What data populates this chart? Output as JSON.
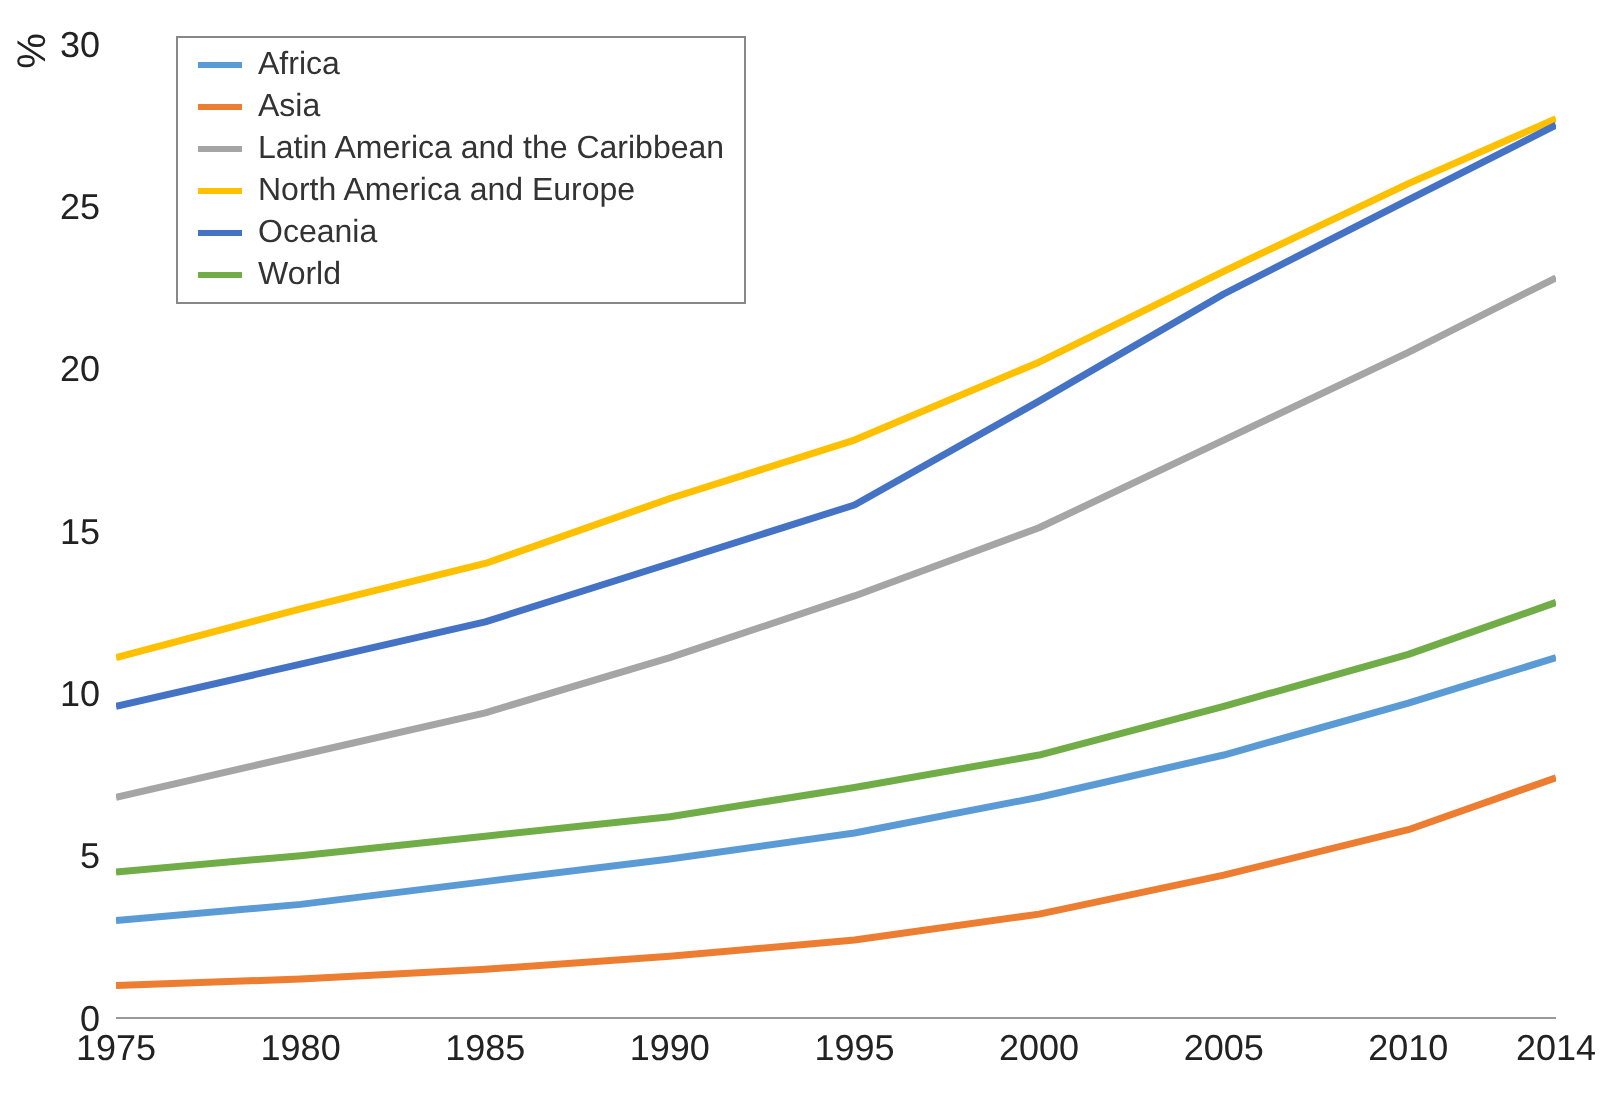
{
  "chart_data": {
    "type": "line",
    "ylabel": "%",
    "x": [
      1975,
      1980,
      1985,
      1990,
      1995,
      2000,
      2005,
      2010,
      2014
    ],
    "series": [
      {
        "name": "Africa",
        "color": "#5b9bd5",
        "values": [
          3.0,
          3.5,
          4.2,
          4.9,
          5.7,
          6.8,
          8.1,
          9.7,
          11.1
        ]
      },
      {
        "name": "Asia",
        "color": "#ed7d31",
        "values": [
          1.0,
          1.2,
          1.5,
          1.9,
          2.4,
          3.2,
          4.4,
          5.8,
          7.4
        ]
      },
      {
        "name": "Latin America and the Caribbean",
        "color": "#a5a5a5",
        "values": [
          6.8,
          8.1,
          9.4,
          11.1,
          13.0,
          15.1,
          17.8,
          20.5,
          22.8
        ]
      },
      {
        "name": "North America and Europe",
        "color": "#ffc000",
        "values": [
          11.1,
          12.6,
          14.0,
          16.0,
          17.8,
          20.2,
          23.0,
          25.7,
          27.7
        ]
      },
      {
        "name": "Oceania",
        "color": "#4472c4",
        "values": [
          9.6,
          10.9,
          12.2,
          14.0,
          15.8,
          19.0,
          22.3,
          25.2,
          27.5
        ]
      },
      {
        "name": "World",
        "color": "#70ad47",
        "values": [
          4.5,
          5.0,
          5.6,
          6.2,
          7.1,
          8.1,
          9.6,
          11.2,
          12.8
        ]
      }
    ],
    "xlim": [
      1975,
      2014
    ],
    "xticks": [
      1975,
      1980,
      1985,
      1990,
      1995,
      2000,
      2005,
      2010,
      2014
    ],
    "ylim": [
      0,
      30
    ],
    "yticks": [
      0,
      5,
      10,
      15,
      20,
      25,
      30
    ],
    "grid": false,
    "legend": "top left",
    "marker": "none",
    "line_style": "solid"
  }
}
